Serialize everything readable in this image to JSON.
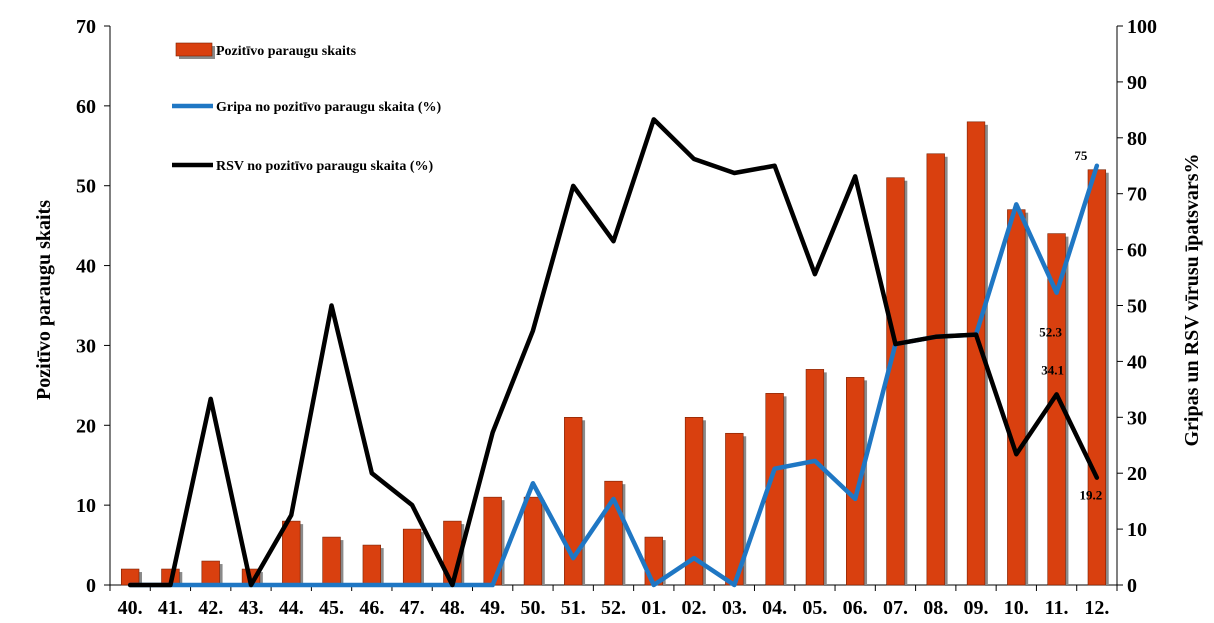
{
  "chart_data": {
    "type": "bar",
    "categories": [
      "40.",
      "41.",
      "42.",
      "43.",
      "44.",
      "45.",
      "46.",
      "47.",
      "48.",
      "49.",
      "50.",
      "51.",
      "52.",
      "01.",
      "02.",
      "03.",
      "04.",
      "05.",
      "06.",
      "07.",
      "08.",
      "09.",
      "10.",
      "11.",
      "12."
    ],
    "series": [
      {
        "name": "Pozitīvo paraugu skaits",
        "type": "bar",
        "axis": "left",
        "color": "#d9400f",
        "values": [
          2,
          2,
          3,
          2,
          8,
          6,
          5,
          7,
          8,
          11,
          11,
          21,
          13,
          6,
          21,
          19,
          24,
          27,
          26,
          51,
          54,
          58,
          47,
          44,
          52
        ]
      },
      {
        "name": "Gripa no pozitīvo paraugu skaita (%)",
        "type": "line",
        "axis": "right",
        "color": "#1f77c4",
        "values": [
          0,
          0,
          0,
          0,
          0,
          0,
          0,
          0,
          0,
          0,
          18.2,
          4.8,
          15.4,
          0,
          4.8,
          0,
          20.8,
          22.2,
          15.4,
          43.1,
          44.4,
          44.8,
          68.1,
          52.3,
          75
        ]
      },
      {
        "name": "RSV no pozitīvo paraugu skaita (%)",
        "type": "line",
        "axis": "right",
        "color": "#000000",
        "values": [
          0,
          0,
          33.3,
          0,
          12.5,
          50,
          20,
          14.3,
          0,
          27.3,
          45.5,
          71.4,
          61.5,
          83.3,
          76.2,
          73.7,
          75,
          55.6,
          73.1,
          43.1,
          44.4,
          44.8,
          23.4,
          34.1,
          19.2
        ]
      }
    ],
    "data_labels": [
      {
        "series": 1,
        "index": 24,
        "text": "75"
      },
      {
        "series": 1,
        "index": 23,
        "text": "52.3"
      },
      {
        "series": 2,
        "index": 23,
        "text": "34.1"
      },
      {
        "series": 2,
        "index": 24,
        "text": "19.2"
      }
    ],
    "y_left": {
      "label": "Pozitīvo  paraugu skaits",
      "min": 0,
      "max": 70,
      "step": 10
    },
    "y_right": {
      "label": "Gripas un RSV vīrusu īpatsvars%",
      "min": 0,
      "max": 100,
      "step": 10
    },
    "legend_position": "top-left",
    "grid": false
  }
}
